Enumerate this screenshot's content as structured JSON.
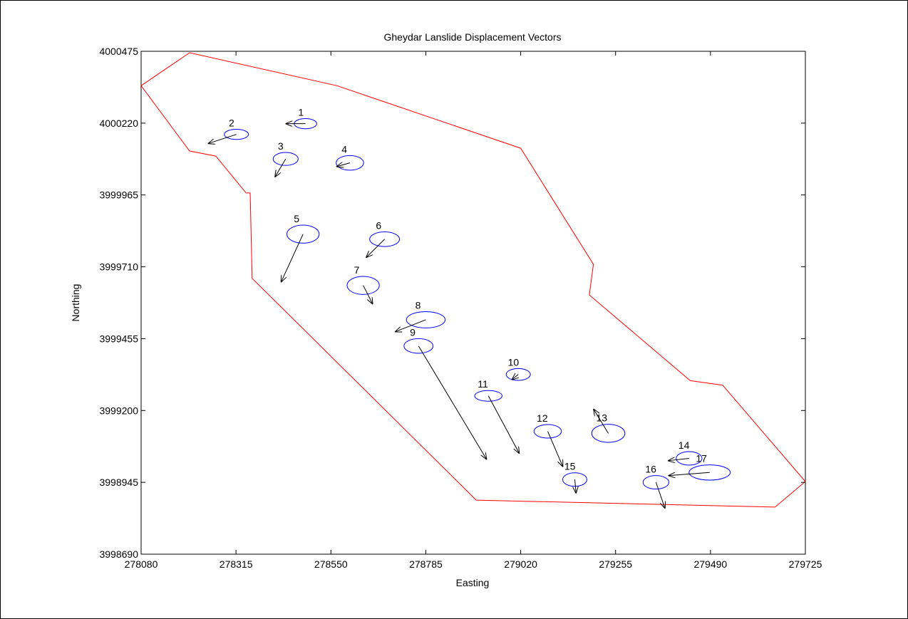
{
  "chart_data": {
    "type": "scatter",
    "title": "Gheydar Lanslide Displacement Vectors",
    "xlabel": "Easting",
    "ylabel": "Northing",
    "xlim": [
      278080,
      279725
    ],
    "ylim": [
      3998690,
      4000475
    ],
    "xticks": [
      "278080",
      "278315",
      "278550",
      "278785",
      "279020",
      "279255",
      "279490",
      "279725"
    ],
    "yticks": [
      "4000475",
      "4000220",
      "3999965",
      "3999710",
      "3999455",
      "3999200",
      "3998945",
      "3998690"
    ],
    "grid": false,
    "colors": {
      "boundary": "#ff0000",
      "ellipse": "#0000ff",
      "vector": "#000000"
    },
    "boundary": [
      [
        278080,
        4000353
      ],
      [
        278200,
        4000470
      ],
      [
        278565,
        4000353
      ],
      [
        279020,
        4000131
      ],
      [
        279200,
        3999719
      ],
      [
        279190,
        3999610
      ],
      [
        279440,
        3999306
      ],
      [
        279520,
        3999290
      ],
      [
        279725,
        3998948
      ],
      [
        279650,
        3998857
      ],
      [
        278910,
        3998882
      ],
      [
        278355,
        3999669
      ],
      [
        278350,
        3999972
      ],
      [
        278340,
        3999972
      ],
      [
        278265,
        4000103
      ],
      [
        278200,
        4000121
      ]
    ],
    "points": [
      {
        "label": "1",
        "x": 278487,
        "y": 4000218,
        "rx": 28,
        "ry": 18,
        "dx": -48,
        "dy": 0
      },
      {
        "label": "2",
        "x": 278316,
        "y": 4000180,
        "rx": 30,
        "ry": 18,
        "dx": -69,
        "dy": -32
      },
      {
        "label": "3",
        "x": 278438,
        "y": 4000093,
        "rx": 31,
        "ry": 23,
        "dx": -26,
        "dy": -63
      },
      {
        "label": "4",
        "x": 278597,
        "y": 4000079,
        "rx": 34,
        "ry": 26,
        "dx": -32,
        "dy": -13
      },
      {
        "label": "5",
        "x": 278481,
        "y": 3999826,
        "rx": 40,
        "ry": 32,
        "dx": -54,
        "dy": -169
      },
      {
        "label": "6",
        "x": 278683,
        "y": 3999808,
        "rx": 37,
        "ry": 26,
        "dx": -45,
        "dy": -64
      },
      {
        "label": "7",
        "x": 278630,
        "y": 3999644,
        "rx": 40,
        "ry": 32,
        "dx": 23,
        "dy": -65
      },
      {
        "label": "8",
        "x": 278785,
        "y": 3999522,
        "rx": 48,
        "ry": 29,
        "dx": -75,
        "dy": -42
      },
      {
        "label": "9",
        "x": 278767,
        "y": 3999429,
        "rx": 36,
        "ry": 26,
        "dx": 168,
        "dy": -401
      },
      {
        "label": "10",
        "x": 279014,
        "y": 3999328,
        "rx": 30,
        "ry": 21,
        "dx": -15,
        "dy": -18
      },
      {
        "label": "11",
        "x": 278940,
        "y": 3999252,
        "rx": 34,
        "ry": 19,
        "dx": 76,
        "dy": -203
      },
      {
        "label": "12",
        "x": 279087,
        "y": 3999126,
        "rx": 34,
        "ry": 24,
        "dx": 37,
        "dy": -124
      },
      {
        "label": "13",
        "x": 279237,
        "y": 3999119,
        "rx": 41,
        "ry": 32,
        "dx": -36,
        "dy": 85
      },
      {
        "label": "14",
        "x": 279437,
        "y": 3999030,
        "rx": 32,
        "ry": 24,
        "dx": -51,
        "dy": -8
      },
      {
        "label": "15",
        "x": 279154,
        "y": 3998955,
        "rx": 30,
        "ry": 24,
        "dx": 3,
        "dy": -47
      },
      {
        "label": "16",
        "x": 279355,
        "y": 3998945,
        "rx": 32,
        "ry": 24,
        "dx": 22,
        "dy": -91
      },
      {
        "label": "17",
        "x": 279488,
        "y": 3998980,
        "rx": 51,
        "ry": 27,
        "dx": -101,
        "dy": -11
      }
    ]
  }
}
